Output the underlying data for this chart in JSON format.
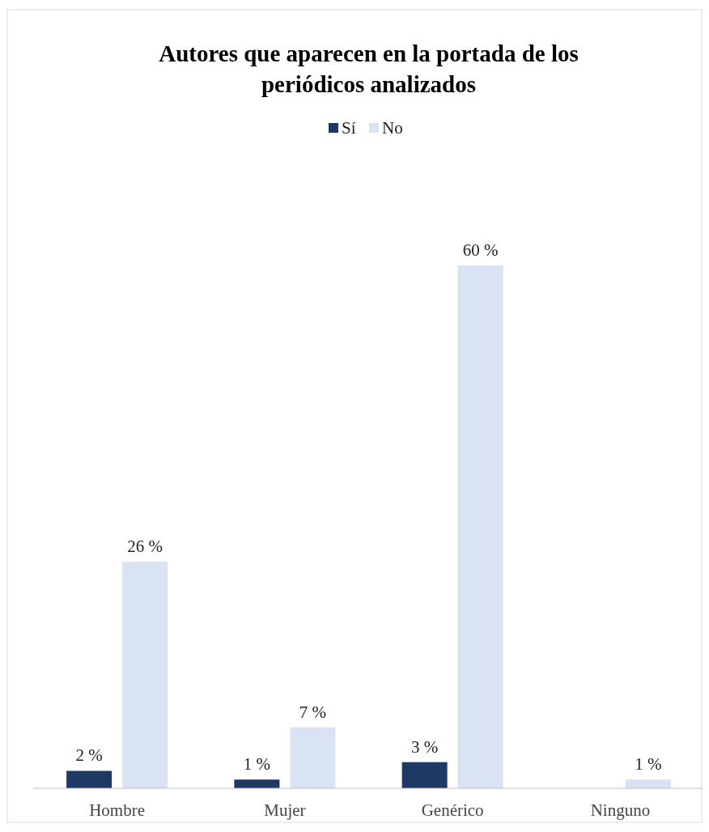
{
  "chart_data": {
    "type": "bar",
    "title": "Autores que aparecen en la portada de los periódicos analizados",
    "categories": [
      "Hombre",
      "Mujer",
      "Genérico",
      "Ninguno"
    ],
    "series": [
      {
        "name": "Sí",
        "color": "#1f3864",
        "values": [
          2,
          1,
          3,
          null
        ],
        "value_labels": [
          "2 %",
          "1 %",
          "3 %",
          null
        ]
      },
      {
        "name": "No",
        "color": "#dae3f3",
        "values": [
          26,
          7,
          60,
          1
        ],
        "value_labels": [
          "26 %",
          "7 %",
          "60 %",
          "1 %"
        ]
      }
    ],
    "legend": "top"
  }
}
